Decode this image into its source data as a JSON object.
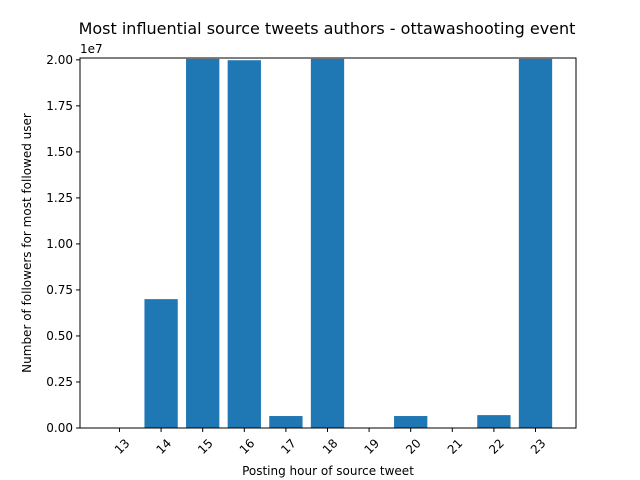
{
  "chart_data": {
    "type": "bar",
    "title": "Most influential source tweets authors - ottawashooting event",
    "xlabel": "Posting hour of source tweet",
    "ylabel": "Number of followers for most followed user",
    "y_scale_label": "1e7",
    "categories": [
      "13",
      "14",
      "15",
      "16",
      "17",
      "18",
      "19",
      "20",
      "21",
      "22",
      "23"
    ],
    "values": [
      0,
      7000000,
      20050000,
      19980000,
      650000,
      20050000,
      0,
      650000,
      0,
      700000,
      20050000
    ],
    "ylim": [
      0,
      20100000
    ],
    "yticks": [
      0,
      2500000,
      5000000,
      7500000,
      10000000,
      12500000,
      15000000,
      17500000,
      20000000
    ],
    "ytick_labels": [
      "0.00",
      "0.25",
      "0.50",
      "0.75",
      "1.00",
      "1.25",
      "1.50",
      "1.75",
      "2.00"
    ],
    "bar_color": "#1f77b4",
    "grid": false,
    "legend": "none"
  }
}
